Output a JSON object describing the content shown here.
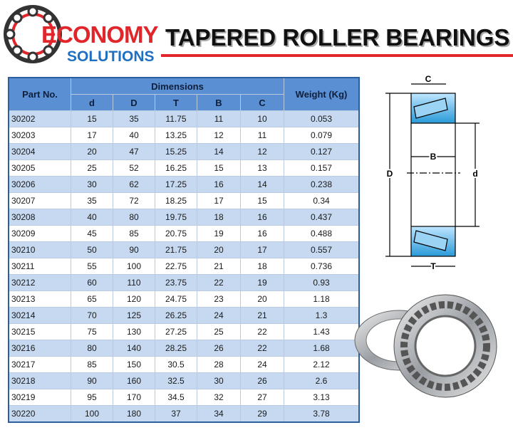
{
  "header": {
    "logo_top": "ECONOMY",
    "logo_bottom": "SOLUTIONS",
    "title": "TAPERED ROLLER BEARINGS"
  },
  "table": {
    "part_header": "Part No.",
    "group_header": "Dimensions",
    "weight_header": "Weight (Kg)",
    "columns": [
      "d",
      "D",
      "T",
      "B",
      "C"
    ],
    "rows": [
      [
        "30202",
        15,
        35,
        11.75,
        11,
        10,
        0.053
      ],
      [
        "30203",
        17,
        40,
        13.25,
        12,
        11,
        0.079
      ],
      [
        "30204",
        20,
        47,
        15.25,
        14,
        12,
        0.127
      ],
      [
        "30205",
        25,
        52,
        16.25,
        15,
        13,
        0.157
      ],
      [
        "30206",
        30,
        62,
        17.25,
        16,
        14,
        0.238
      ],
      [
        "30207",
        35,
        72,
        18.25,
        17,
        15,
        0.34
      ],
      [
        "30208",
        40,
        80,
        19.75,
        18,
        16,
        0.437
      ],
      [
        "30209",
        45,
        85,
        20.75,
        19,
        16,
        0.488
      ],
      [
        "30210",
        50,
        90,
        21.75,
        20,
        17,
        0.557
      ],
      [
        "30211",
        55,
        100,
        22.75,
        21,
        18,
        0.736
      ],
      [
        "30212",
        60,
        110,
        23.75,
        22,
        19,
        0.93
      ],
      [
        "30213",
        65,
        120,
        24.75,
        23,
        20,
        1.18
      ],
      [
        "30214",
        70,
        125,
        26.25,
        24,
        21,
        1.3
      ],
      [
        "30215",
        75,
        130,
        27.25,
        25,
        22,
        1.43
      ],
      [
        "30216",
        80,
        140,
        28.25,
        26,
        22,
        1.68
      ],
      [
        "30217",
        85,
        150,
        30.5,
        28,
        24,
        2.12
      ],
      [
        "30218",
        90,
        160,
        32.5,
        30,
        26,
        2.6
      ],
      [
        "30219",
        95,
        170,
        34.5,
        32,
        27,
        3.13
      ],
      [
        "30220",
        100,
        180,
        37,
        34,
        29,
        3.78
      ]
    ]
  },
  "diagram": {
    "c": "C",
    "b": "B",
    "outer": "D",
    "inner": "d",
    "t": "T"
  }
}
